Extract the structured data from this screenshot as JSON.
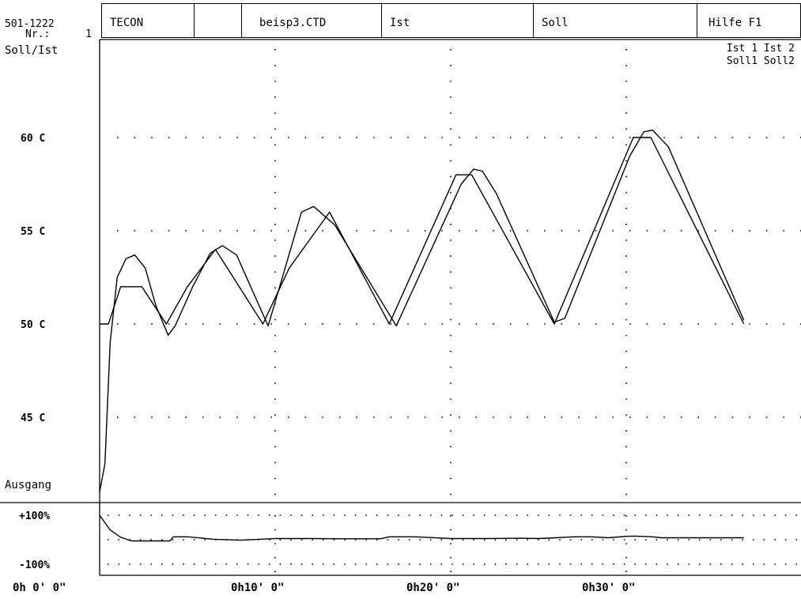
{
  "header": {
    "device_id": "501-1222",
    "nr_label": "Nr.:",
    "nr_value": "1",
    "mode_label": "Soll/Ist",
    "cells": [
      {
        "label": "TECON"
      },
      {
        "label": ""
      },
      {
        "label": "beisp3.CTD"
      },
      {
        "label": "Ist"
      },
      {
        "label": "Soll"
      },
      {
        "label": "Hilfe F1"
      }
    ]
  },
  "legend": {
    "line1": "Ist 1 Ist 2",
    "line2": "Soll1 Soll2"
  },
  "lower_panel_label": "Ausgang",
  "chart_data": [
    {
      "type": "line",
      "title": "",
      "ylabel": "Soll/Ist",
      "y_unit": "C",
      "ylim": [
        41,
        68
      ],
      "y_ticks": [
        45,
        50,
        55,
        60
      ],
      "y_tick_labels": [
        "45 C",
        "50 C",
        "55 C",
        "60 C"
      ],
      "x_unit": "minutes",
      "xlim": [
        0,
        40
      ],
      "x_ticks": [
        0,
        10,
        20,
        30
      ],
      "x_tick_labels": [
        "0h 0' 0\"",
        "0h10' 0\"",
        "0h20' 0\"",
        "0h30' 0\""
      ],
      "grid": true,
      "series": [
        {
          "name": "Soll",
          "x": [
            0,
            0.5,
            1.2,
            2.4,
            3.8,
            5.0,
            6.6,
            9.3,
            10.8,
            13.1,
            16.5,
            20.3,
            21.2,
            25.9,
            30.4,
            31.4,
            36.7
          ],
          "y": [
            50,
            50,
            52,
            52,
            50,
            52,
            54,
            50,
            53,
            56,
            50,
            58,
            58,
            50,
            60,
            60,
            50
          ]
        },
        {
          "name": "Ist",
          "x": [
            0,
            0.3,
            0.6,
            1.0,
            1.5,
            2.0,
            2.6,
            3.2,
            3.9,
            4.3,
            5.3,
            6.3,
            7.0,
            7.8,
            9.6,
            11.5,
            12.2,
            13.4,
            16.9,
            20.6,
            21.3,
            21.8,
            22.6,
            25.9,
            26.5,
            30.2,
            31.0,
            31.5,
            32.4,
            36.7
          ],
          "y": [
            41,
            42.5,
            49.0,
            52.5,
            53.5,
            53.7,
            53.0,
            51.0,
            49.4,
            49.9,
            52.0,
            53.8,
            54.2,
            53.7,
            49.9,
            56.0,
            56.3,
            55.3,
            49.9,
            57.5,
            58.3,
            58.2,
            57.0,
            50.1,
            50.3,
            59.0,
            60.3,
            60.4,
            59.5,
            50.2
          ]
        }
      ]
    },
    {
      "type": "line",
      "title": "",
      "ylabel": "Ausgang",
      "ylim": [
        -100,
        100
      ],
      "y_ticks": [
        100,
        -100
      ],
      "y_tick_labels": [
        "+100%",
        "-100%"
      ],
      "xlim": [
        0,
        40
      ],
      "grid": true,
      "series": [
        {
          "name": "Ausgang",
          "x": [
            0,
            0.6,
            1.2,
            1.8,
            2.5,
            3.0,
            4.0,
            4.2,
            5.0,
            6.5,
            8.0,
            9.5,
            10.0,
            12.0,
            14.0,
            16.0,
            16.5,
            18.0,
            20.0,
            22.0,
            24.0,
            25.0,
            26.0,
            27.0,
            28.0,
            29.0,
            30.0,
            30.5,
            31.5,
            32.0,
            33.0,
            34.0,
            36.7
          ],
          "y": [
            100,
            40,
            10,
            -5,
            -5,
            -5,
            -5,
            12,
            12,
            2,
            -2,
            3,
            5,
            5,
            4,
            4,
            12,
            12,
            5,
            5,
            6,
            5,
            8,
            12,
            12,
            8,
            14,
            15,
            12,
            8,
            8,
            8,
            8
          ]
        }
      ]
    }
  ]
}
